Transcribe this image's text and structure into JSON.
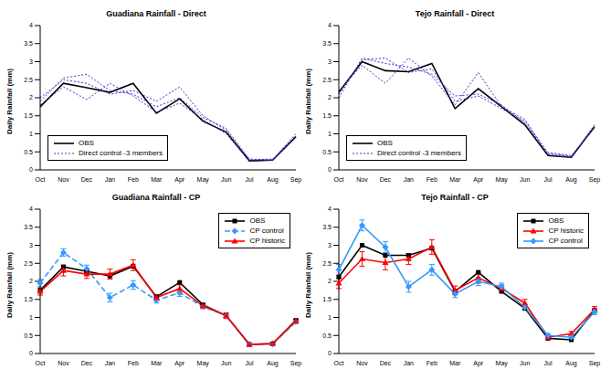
{
  "chart_data": [
    {
      "type": "line",
      "title": "Guadiana Rainfall  - Direct",
      "y_label": "Daily Rainfall (mm)",
      "categories": [
        "Oct",
        "Nov",
        "Dec",
        "Jan",
        "Feb",
        "Mar",
        "Apr",
        "May",
        "Jun",
        "Jul",
        "Aug",
        "Sep"
      ],
      "ylim": [
        0,
        4
      ],
      "yticks": [
        0,
        0.5,
        1,
        1.5,
        2,
        2.5,
        3,
        3.5,
        4
      ],
      "grid": false,
      "legend": "lower left",
      "series": [
        {
          "name": "OBS",
          "color": "#000000",
          "line_style": "solid",
          "marker": "none",
          "values": [
            1.75,
            2.4,
            2.28,
            2.15,
            2.4,
            1.57,
            1.97,
            1.35,
            1.05,
            0.25,
            0.27,
            0.92
          ]
        },
        {
          "name": "Direct control -3 members",
          "color": "#3333cc",
          "line_style": "dotted",
          "marker": "none",
          "members": [
            [
              2.0,
              2.5,
              2.4,
              2.1,
              2.2,
              1.9,
              2.3,
              1.5,
              1.1,
              0.28,
              0.3,
              0.95
            ],
            [
              1.8,
              2.3,
              1.95,
              2.4,
              2.05,
              1.6,
              1.85,
              1.4,
              1.0,
              0.25,
              0.27,
              0.9
            ],
            [
              1.9,
              2.55,
              2.65,
              2.2,
              2.1,
              1.75,
              2.0,
              1.45,
              1.15,
              0.3,
              0.28,
              1.0
            ]
          ]
        }
      ]
    },
    {
      "type": "line",
      "title": "Tejo Rainfall  - Direct",
      "y_label": "Daily Rainfall (mm)",
      "categories": [
        "Oct",
        "Nov",
        "Dec",
        "Jan",
        "Feb",
        "Mar",
        "Apr",
        "May",
        "Jun",
        "Jul",
        "Aug",
        "Sep"
      ],
      "ylim": [
        0,
        4
      ],
      "yticks": [
        0,
        0.5,
        1,
        1.5,
        2,
        2.5,
        3,
        3.5,
        4
      ],
      "grid": false,
      "legend": "lower left",
      "series": [
        {
          "name": "OBS",
          "color": "#000000",
          "line_style": "solid",
          "marker": "none",
          "values": [
            2.15,
            3.0,
            2.75,
            2.72,
            2.95,
            1.7,
            2.25,
            1.75,
            1.25,
            0.4,
            0.35,
            1.2
          ]
        },
        {
          "name": "Direct control -3 members",
          "color": "#3333cc",
          "line_style": "dotted",
          "marker": "none",
          "members": [
            [
              2.0,
              3.1,
              2.95,
              2.85,
              2.65,
              2.05,
              2.1,
              1.8,
              1.3,
              0.45,
              0.38,
              1.2
            ],
            [
              2.2,
              2.9,
              2.4,
              3.1,
              2.6,
              1.8,
              2.7,
              1.75,
              1.4,
              0.42,
              0.36,
              1.25
            ],
            [
              2.1,
              3.05,
              3.1,
              2.7,
              2.8,
              1.9,
              2.05,
              1.7,
              1.35,
              0.48,
              0.4,
              1.15
            ]
          ]
        }
      ]
    },
    {
      "type": "line",
      "title": "Guadiana Rainfall  - CP",
      "y_label": "Daily Rainfall (mm)",
      "categories": [
        "Oct",
        "Nov",
        "Dec",
        "Jan",
        "Feb",
        "Mar",
        "Apr",
        "May",
        "Jun",
        "Jul",
        "Aug",
        "Sep"
      ],
      "ylim": [
        0,
        4
      ],
      "yticks": [
        0,
        0.5,
        1,
        1.5,
        2,
        2.5,
        3,
        3.5,
        4
      ],
      "grid": false,
      "legend": "upper right",
      "series": [
        {
          "name": "OBS",
          "color": "#000000",
          "line_style": "solid",
          "marker": "square",
          "values": [
            1.75,
            2.4,
            2.28,
            2.15,
            2.42,
            1.57,
            1.97,
            1.35,
            1.05,
            0.25,
            0.27,
            0.92
          ]
        },
        {
          "name": "CP control",
          "color": "#3399ff",
          "line_style": "dashed",
          "marker": "diamond",
          "values": [
            1.95,
            2.8,
            2.35,
            1.55,
            1.9,
            1.48,
            1.68,
            1.3,
            1.05,
            0.26,
            0.26,
            0.88
          ],
          "errors": [
            0.1,
            0.1,
            0.1,
            0.12,
            0.12,
            0.08,
            0.1,
            0.06,
            0.06,
            0.03,
            0.03,
            0.05
          ]
        },
        {
          "name": "CP historic",
          "color": "#ff0000",
          "line_style": "solid",
          "marker": "triangle",
          "values": [
            1.72,
            2.3,
            2.2,
            2.2,
            2.45,
            1.55,
            1.8,
            1.32,
            1.05,
            0.25,
            0.28,
            0.9
          ],
          "errors": [
            0.1,
            0.15,
            0.12,
            0.14,
            0.15,
            0.08,
            0.1,
            0.06,
            0.08,
            0.03,
            0.03,
            0.05
          ]
        }
      ]
    },
    {
      "type": "line",
      "title": "Tejo Rainfall  - CP",
      "y_label": "Daily Rainfall (mm)",
      "categories": [
        "Oct",
        "Nov",
        "Dec",
        "Jan",
        "Feb",
        "Mar",
        "Apr",
        "May",
        "Jun",
        "Jul",
        "Aug",
        "Sep"
      ],
      "ylim": [
        0,
        4
      ],
      "yticks": [
        0,
        0.5,
        1,
        1.5,
        2,
        2.5,
        3,
        3.5,
        4
      ],
      "grid": false,
      "legend": "upper right",
      "series": [
        {
          "name": "OBS",
          "color": "#000000",
          "line_style": "solid",
          "marker": "square",
          "values": [
            2.12,
            3.0,
            2.72,
            2.72,
            2.92,
            1.72,
            2.25,
            1.72,
            1.25,
            0.42,
            0.38,
            1.2
          ]
        },
        {
          "name": "CP historic",
          "color": "#ff0000",
          "line_style": "solid",
          "marker": "triangle",
          "values": [
            1.95,
            2.62,
            2.52,
            2.62,
            2.95,
            1.75,
            2.1,
            1.8,
            1.4,
            0.45,
            0.55,
            1.22
          ],
          "errors": [
            0.15,
            0.2,
            0.2,
            0.15,
            0.2,
            0.12,
            0.15,
            0.1,
            0.1,
            0.06,
            0.06,
            0.08
          ]
        },
        {
          "name": "CP control",
          "color": "#3399ff",
          "line_style": "solid",
          "marker": "diamond",
          "values": [
            2.32,
            3.55,
            2.95,
            1.85,
            2.32,
            1.65,
            2.0,
            1.85,
            1.28,
            0.5,
            0.45,
            1.15
          ],
          "errors": [
            0.15,
            0.15,
            0.15,
            0.15,
            0.15,
            0.1,
            0.12,
            0.1,
            0.08,
            0.05,
            0.05,
            0.07
          ]
        }
      ]
    }
  ]
}
